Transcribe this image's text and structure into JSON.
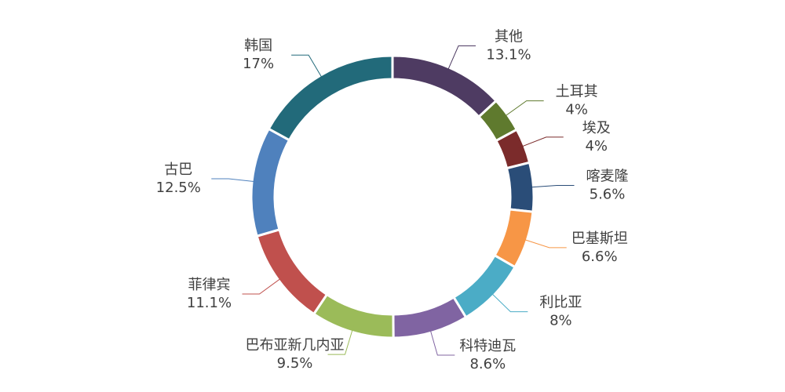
{
  "chart_data": {
    "type": "donut",
    "categories": [
      "其他",
      "土耳其",
      "埃及",
      "喀麦隆",
      "巴基斯坦",
      "利比亚",
      "科特迪瓦",
      "巴布亚新几内亚",
      "菲律宾",
      "古巴",
      "韩国"
    ],
    "values": [
      13.1,
      4,
      4,
      5.6,
      6.6,
      8,
      8.6,
      9.5,
      11.1,
      12.5,
      17
    ],
    "value_labels": [
      "13.1%",
      "4%",
      "4%",
      "5.6%",
      "6.6%",
      "8%",
      "8.6%",
      "9.5%",
      "11.1%",
      "12.5%",
      "17%"
    ],
    "colors": [
      "#4e3b62",
      "#5f7a2e",
      "#7b2b2b",
      "#2a4d78",
      "#f79646",
      "#4bacc6",
      "#8064a2",
      "#9bbb59",
      "#c0504d",
      "#4f81bd",
      "#226a7a"
    ]
  }
}
